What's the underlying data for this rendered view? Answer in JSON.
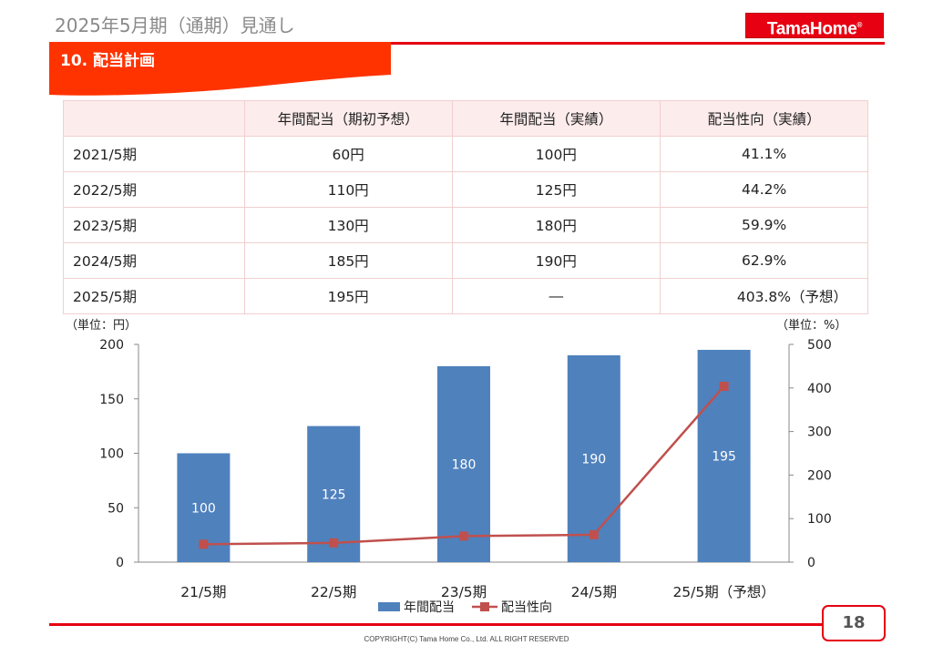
{
  "header": {
    "title": "2025年5月期（通期）見通し",
    "logo_text": "TamaHome",
    "logo_mark": "®"
  },
  "section": {
    "title": "10. 配当計画"
  },
  "table": {
    "headers": [
      "",
      "年間配当（期初予想）",
      "年間配当（実績）",
      "配当性向（実績）"
    ],
    "rows": [
      [
        "2021/5期",
        "60円",
        "100円",
        "41.1%"
      ],
      [
        "2022/5期",
        "110円",
        "125円",
        "44.2%"
      ],
      [
        "2023/5期",
        "130円",
        "180円",
        "59.9%"
      ],
      [
        "2024/5期",
        "185円",
        "190円",
        "62.9%"
      ],
      [
        "2025/5期",
        "195円",
        "―",
        "403.8%（予想）"
      ]
    ]
  },
  "chart_units": {
    "left": "（単位：円）",
    "right": "（単位：%）"
  },
  "chart_data": {
    "type": "bar",
    "categories": [
      "21/5期",
      "22/5期",
      "23/5期",
      "24/5期",
      "25/5期（予想）"
    ],
    "series": [
      {
        "name": "年間配当",
        "type": "bar",
        "axis": "left",
        "values": [
          100,
          125,
          180,
          190,
          195
        ],
        "color": "#4f81bd"
      },
      {
        "name": "配当性向",
        "type": "line",
        "axis": "right",
        "values": [
          41.1,
          44.2,
          59.9,
          62.9,
          403.8
        ],
        "color": "#c0504d"
      }
    ],
    "ylim_left": [
      0,
      200
    ],
    "yticks_left": [
      0,
      50,
      100,
      150,
      200
    ],
    "ylim_right": [
      0,
      500
    ],
    "yticks_right": [
      0,
      100,
      200,
      300,
      400,
      500
    ],
    "legend_position": "bottom",
    "grid": false
  },
  "footer": {
    "page_number": "18",
    "copyright": "COPYRIGHT(C)  Tama Home Co., Ltd.   ALL RIGHT RESERVED"
  }
}
